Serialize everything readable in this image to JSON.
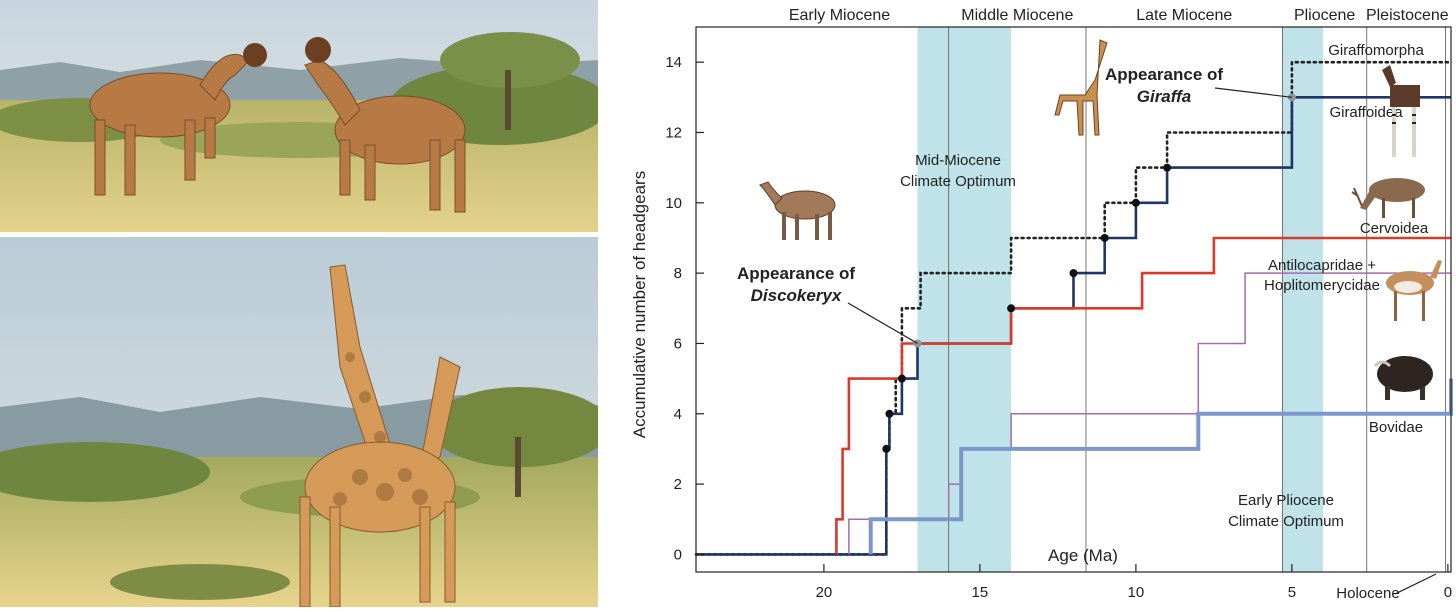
{
  "chart_data": {
    "type": "line",
    "xlabel": "Age (Ma)",
    "ylabel": "Accumulative number of headgears",
    "xlim": [
      24.1,
      -0.1
    ],
    "ylim": [
      -0.5,
      15
    ],
    "x_ticks": [
      20,
      15,
      10,
      5,
      0
    ],
    "y_ticks": [
      0,
      2,
      4,
      6,
      8,
      10,
      12,
      14
    ],
    "grid": false,
    "epochs": [
      {
        "name": "Early Miocene",
        "start": 23.0,
        "end": 16.0
      },
      {
        "name": "Middle Miocene",
        "start": 16.0,
        "end": 11.6
      },
      {
        "name": "Late Miocene",
        "start": 11.6,
        "end": 5.3
      },
      {
        "name": "Pliocene",
        "start": 5.3,
        "end": 2.6
      },
      {
        "name": "Pleistocene",
        "start": 2.6,
        "end": 0.0
      }
    ],
    "holocene_label": "Holocene",
    "climate_bands": [
      {
        "label_lines": [
          "Mid-Miocene",
          "Climate Optimum"
        ],
        "start": 17.0,
        "end": 14.0
      },
      {
        "label_lines": [
          "Early Pliocene",
          "Climate Optimum"
        ],
        "start": 5.3,
        "end": 4.0
      }
    ],
    "series": [
      {
        "name": "Giraffomorpha",
        "color": "#222222",
        "style": "dotted",
        "points": [
          [
            24.1,
            0
          ],
          [
            18,
            0
          ],
          [
            18,
            3
          ],
          [
            17.9,
            3
          ],
          [
            17.9,
            4
          ],
          [
            17.7,
            4
          ],
          [
            17.7,
            5
          ],
          [
            17.5,
            5
          ],
          [
            17.5,
            7
          ],
          [
            16.9,
            7
          ],
          [
            16.9,
            8
          ],
          [
            14,
            8
          ],
          [
            14,
            9
          ],
          [
            11,
            9
          ],
          [
            11,
            10
          ],
          [
            10,
            10
          ],
          [
            10,
            11
          ],
          [
            9,
            11
          ],
          [
            9,
            12
          ],
          [
            5,
            12
          ],
          [
            5,
            14
          ],
          [
            -0.1,
            14
          ]
        ]
      },
      {
        "name": "Giraffoidea",
        "color": "#1e3566",
        "style": "solid",
        "points": [
          [
            24.1,
            0
          ],
          [
            18,
            0
          ],
          [
            18,
            3
          ],
          [
            17.9,
            3
          ],
          [
            17.9,
            4
          ],
          [
            17.5,
            4
          ],
          [
            17.5,
            5
          ],
          [
            17,
            5
          ],
          [
            17,
            6
          ],
          [
            16.7,
            6
          ],
          [
            14,
            6
          ],
          [
            14,
            7
          ],
          [
            12,
            7
          ],
          [
            12,
            8
          ],
          [
            11,
            8
          ],
          [
            11,
            9
          ],
          [
            10,
            9
          ],
          [
            10,
            10
          ],
          [
            9,
            10
          ],
          [
            9,
            11
          ],
          [
            5,
            11
          ],
          [
            5,
            13
          ],
          [
            -0.1,
            13
          ]
        ]
      },
      {
        "name": "Cervoidea",
        "color": "#d93a2b",
        "style": "solid",
        "points": [
          [
            19.6,
            0
          ],
          [
            19.6,
            1
          ],
          [
            19.4,
            1
          ],
          [
            19.4,
            3
          ],
          [
            19.2,
            3
          ],
          [
            19.2,
            5
          ],
          [
            17.5,
            5
          ],
          [
            17.5,
            6
          ],
          [
            16.7,
            6
          ],
          [
            14,
            6
          ],
          [
            14,
            7
          ],
          [
            9.8,
            7
          ],
          [
            9.8,
            8
          ],
          [
            7.5,
            8
          ],
          [
            7.5,
            9
          ],
          [
            -0.1,
            9
          ]
        ]
      },
      {
        "name": "Antilocapridae + Hoplitomerycidae",
        "color": "#a56bac",
        "style": "solid",
        "points": [
          [
            19.2,
            0
          ],
          [
            19.2,
            1
          ],
          [
            16,
            1
          ],
          [
            16,
            2
          ],
          [
            15.6,
            2
          ],
          [
            15.6,
            3
          ],
          [
            14,
            3
          ],
          [
            14,
            4
          ],
          [
            8,
            4
          ],
          [
            8,
            6
          ],
          [
            6.5,
            6
          ],
          [
            6.5,
            8
          ],
          [
            -0.1,
            8
          ]
        ]
      },
      {
        "name": "Bovidae",
        "color": "#7d97cd",
        "style": "solid-thick",
        "points": [
          [
            18.5,
            0
          ],
          [
            18.5,
            1
          ],
          [
            15.6,
            1
          ],
          [
            15.6,
            3
          ],
          [
            8,
            3
          ],
          [
            8,
            4
          ],
          [
            -0.1,
            4
          ],
          [
            -0.1,
            5
          ]
        ]
      }
    ],
    "markers": [
      {
        "x": 18,
        "y": 3,
        "color": "#111111"
      },
      {
        "x": 17.9,
        "y": 4,
        "color": "#111111"
      },
      {
        "x": 17.5,
        "y": 5,
        "color": "#111111"
      },
      {
        "x": 17.0,
        "y": 6,
        "color": "#8e969c"
      },
      {
        "x": 14,
        "y": 7,
        "color": "#111111"
      },
      {
        "x": 12,
        "y": 8,
        "color": "#111111"
      },
      {
        "x": 11,
        "y": 9,
        "color": "#111111"
      },
      {
        "x": 10,
        "y": 10,
        "color": "#111111"
      },
      {
        "x": 9,
        "y": 11,
        "color": "#111111"
      },
      {
        "x": 5,
        "y": 13,
        "color": "#8e969c"
      }
    ],
    "annotations": [
      {
        "lines": [
          "Appearance of",
          "Discokeryx"
        ],
        "italic_line": 1,
        "x": 17.0,
        "y": 6
      },
      {
        "lines": [
          "Appearance of",
          "Giraffa"
        ],
        "italic_line": 1,
        "x": 5,
        "y": 13
      }
    ]
  },
  "icons": [
    "giraffe-icon",
    "discokeryx-icon",
    "okapi-icon",
    "deer-icon",
    "pronghorn-icon",
    "musk-ox-icon"
  ],
  "colors": {
    "climate_band": "#bfe3e8",
    "sky": "#bfd3df",
    "grass": "#d9c77e"
  }
}
